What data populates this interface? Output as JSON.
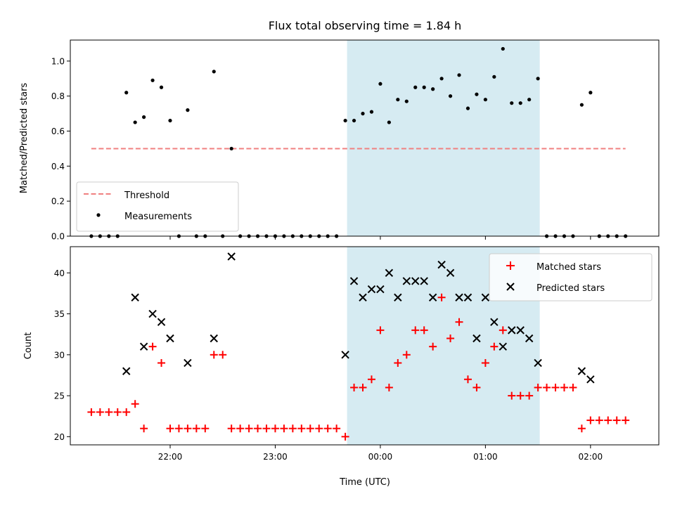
{
  "chart_data": {
    "type": "scatter",
    "title": "Flux total observing time = 1.84 h",
    "x_unit_note": "UTC clock time; hours after 21:00 with values above 3 crossing midnight",
    "colors": {
      "threshold": "#f08080",
      "measurements": "#000000",
      "matched": "#ff0000",
      "predicted": "#000000",
      "shade": "#add8e6"
    },
    "shaded_region": {
      "x": [
        "23:41",
        "01:31"
      ]
    },
    "x_axis": {
      "label": "Time (UTC)",
      "ticks": [
        "22:00",
        "23:00",
        "00:00",
        "01:00",
        "02:00"
      ]
    },
    "panels": [
      {
        "ylabel": "Matched/Predicted stars",
        "ylim": [
          0,
          1.12
        ],
        "yticks": [
          "0.0",
          "0.2",
          "0.4",
          "0.6",
          "0.8",
          "1.0"
        ],
        "legend": {
          "placement": "lower-left",
          "entries": [
            "Threshold",
            "Measurements"
          ]
        },
        "threshold": {
          "name": "Threshold",
          "value": 0.5,
          "x": [
            "21:15",
            "02:20"
          ]
        },
        "measurements": {
          "name": "Measurements",
          "points": [
            [
              "21:15",
              0
            ],
            [
              "21:20",
              0
            ],
            [
              "21:25",
              0
            ],
            [
              "21:30",
              0
            ],
            [
              "21:35",
              0.82
            ],
            [
              "21:40",
              0.65
            ],
            [
              "21:45",
              0.68
            ],
            [
              "21:50",
              0.89
            ],
            [
              "21:55",
              0.85
            ],
            [
              "22:00",
              0.66
            ],
            [
              "22:05",
              0
            ],
            [
              "22:10",
              0.72
            ],
            [
              "22:15",
              0
            ],
            [
              "22:20",
              0
            ],
            [
              "22:25",
              0.94
            ],
            [
              "22:30",
              0
            ],
            [
              "22:35",
              0.5
            ],
            [
              "22:40",
              0
            ],
            [
              "22:45",
              0
            ],
            [
              "22:50",
              0
            ],
            [
              "22:55",
              0
            ],
            [
              "23:00",
              0
            ],
            [
              "23:05",
              0
            ],
            [
              "23:10",
              0
            ],
            [
              "23:15",
              0
            ],
            [
              "23:20",
              0
            ],
            [
              "23:25",
              0
            ],
            [
              "23:30",
              0
            ],
            [
              "23:35",
              0
            ],
            [
              "23:40",
              0.66
            ],
            [
              "23:45",
              0.66
            ],
            [
              "23:50",
              0.7
            ],
            [
              "23:55",
              0.71
            ],
            [
              "00:00",
              0.87
            ],
            [
              "00:05",
              0.65
            ],
            [
              "00:10",
              0.78
            ],
            [
              "00:15",
              0.77
            ],
            [
              "00:20",
              0.85
            ],
            [
              "00:25",
              0.85
            ],
            [
              "00:30",
              0.84
            ],
            [
              "00:35",
              0.9
            ],
            [
              "00:40",
              0.8
            ],
            [
              "00:45",
              0.92
            ],
            [
              "00:50",
              0.73
            ],
            [
              "00:55",
              0.81
            ],
            [
              "01:00",
              0.78
            ],
            [
              "01:05",
              0.91
            ],
            [
              "01:10",
              1.07
            ],
            [
              "01:15",
              0.76
            ],
            [
              "01:20",
              0.76
            ],
            [
              "01:25",
              0.78
            ],
            [
              "01:30",
              0.9
            ],
            [
              "01:35",
              0
            ],
            [
              "01:40",
              0
            ],
            [
              "01:45",
              0
            ],
            [
              "01:50",
              0
            ],
            [
              "01:55",
              0.75
            ],
            [
              "02:00",
              0.82
            ],
            [
              "02:05",
              0
            ],
            [
              "02:10",
              0
            ],
            [
              "02:15",
              0
            ],
            [
              "02:20",
              0
            ]
          ]
        }
      },
      {
        "ylabel": "Count",
        "ylim": [
          19,
          43.2
        ],
        "yticks": [
          "20",
          "25",
          "30",
          "35",
          "40"
        ],
        "legend": {
          "placement": "upper-right",
          "entries": [
            "Matched stars",
            "Predicted stars"
          ]
        },
        "matched": {
          "name": "Matched stars",
          "points": [
            [
              "21:15",
              23
            ],
            [
              "21:20",
              23
            ],
            [
              "21:25",
              23
            ],
            [
              "21:30",
              23
            ],
            [
              "21:35",
              23
            ],
            [
              "21:40",
              24
            ],
            [
              "21:45",
              21
            ],
            [
              "21:50",
              31
            ],
            [
              "21:55",
              29
            ],
            [
              "22:00",
              21
            ],
            [
              "22:05",
              21
            ],
            [
              "22:10",
              21
            ],
            [
              "22:15",
              21
            ],
            [
              "22:20",
              21
            ],
            [
              "22:25",
              30
            ],
            [
              "22:30",
              30
            ],
            [
              "22:35",
              21
            ],
            [
              "22:40",
              21
            ],
            [
              "22:45",
              21
            ],
            [
              "22:50",
              21
            ],
            [
              "22:55",
              21
            ],
            [
              "23:00",
              21
            ],
            [
              "23:05",
              21
            ],
            [
              "23:10",
              21
            ],
            [
              "23:15",
              21
            ],
            [
              "23:20",
              21
            ],
            [
              "23:25",
              21
            ],
            [
              "23:30",
              21
            ],
            [
              "23:35",
              21
            ],
            [
              "23:40",
              20
            ],
            [
              "23:45",
              26
            ],
            [
              "23:50",
              26
            ],
            [
              "23:55",
              27
            ],
            [
              "00:00",
              33
            ],
            [
              "00:05",
              26
            ],
            [
              "00:10",
              29
            ],
            [
              "00:15",
              30
            ],
            [
              "00:20",
              33
            ],
            [
              "00:25",
              33
            ],
            [
              "00:30",
              31
            ],
            [
              "00:35",
              37
            ],
            [
              "00:40",
              32
            ],
            [
              "00:45",
              34
            ],
            [
              "00:50",
              27
            ],
            [
              "00:55",
              26
            ],
            [
              "01:00",
              29
            ],
            [
              "01:05",
              31
            ],
            [
              "01:10",
              33
            ],
            [
              "01:15",
              25
            ],
            [
              "01:20",
              25
            ],
            [
              "01:25",
              25
            ],
            [
              "01:30",
              26
            ],
            [
              "01:35",
              26
            ],
            [
              "01:40",
              26
            ],
            [
              "01:45",
              26
            ],
            [
              "01:50",
              26
            ],
            [
              "01:55",
              21
            ],
            [
              "02:00",
              22
            ],
            [
              "02:05",
              22
            ],
            [
              "02:10",
              22
            ],
            [
              "02:15",
              22
            ],
            [
              "02:20",
              22
            ]
          ]
        },
        "predicted": {
          "name": "Predicted stars",
          "points": [
            [
              "21:35",
              28
            ],
            [
              "21:40",
              37
            ],
            [
              "21:45",
              31
            ],
            [
              "21:50",
              35
            ],
            [
              "21:55",
              34
            ],
            [
              "22:00",
              32
            ],
            [
              "22:10",
              29
            ],
            [
              "22:25",
              32
            ],
            [
              "22:35",
              42
            ],
            [
              "23:40",
              30
            ],
            [
              "23:45",
              39
            ],
            [
              "23:50",
              37
            ],
            [
              "23:55",
              38
            ],
            [
              "00:00",
              38
            ],
            [
              "00:05",
              40
            ],
            [
              "00:10",
              37
            ],
            [
              "00:15",
              39
            ],
            [
              "00:20",
              39
            ],
            [
              "00:25",
              39
            ],
            [
              "00:30",
              37
            ],
            [
              "00:35",
              41
            ],
            [
              "00:40",
              40
            ],
            [
              "00:45",
              37
            ],
            [
              "00:50",
              37
            ],
            [
              "00:55",
              32
            ],
            [
              "01:00",
              37
            ],
            [
              "01:05",
              34
            ],
            [
              "01:10",
              31
            ],
            [
              "01:15",
              33
            ],
            [
              "01:20",
              33
            ],
            [
              "01:25",
              32
            ],
            [
              "01:30",
              29
            ],
            [
              "01:55",
              28
            ],
            [
              "02:00",
              27
            ]
          ]
        }
      }
    ]
  }
}
